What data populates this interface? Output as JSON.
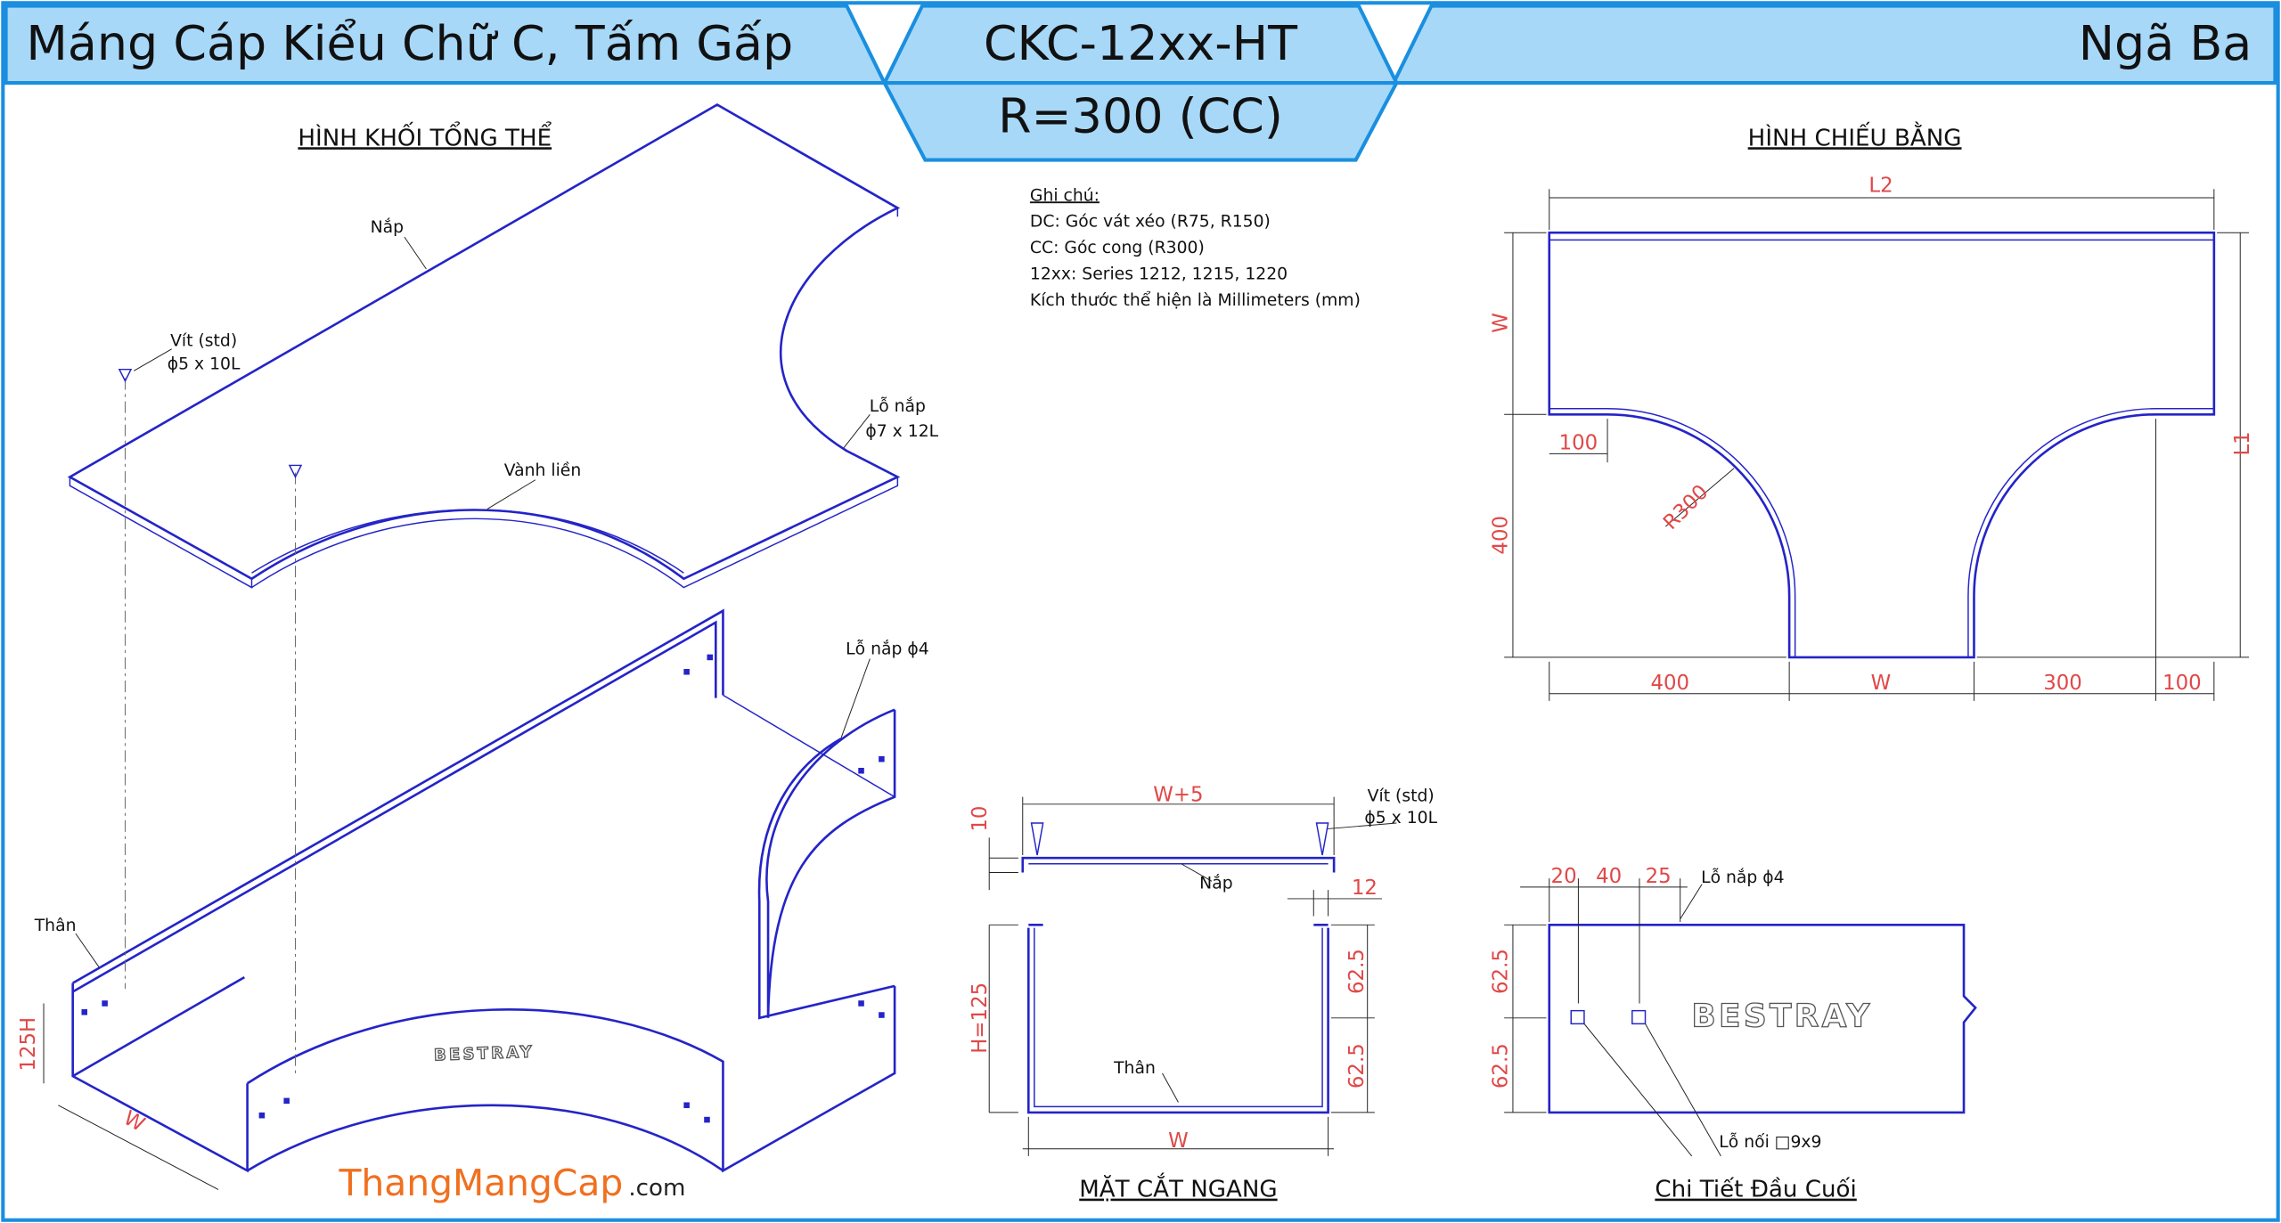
{
  "header": {
    "title": "Máng Cáp Kiểu Chữ C, Tấm Gấp",
    "code": "CKC-12xx-HT",
    "radius": "R=300 (CC)",
    "fitting": "Ngã Ba"
  },
  "notes": {
    "heading": "Ghi chú:",
    "lines": [
      "DC: Góc vát xéo (R75, R150)",
      "CC: Góc cong (R300)",
      "12xx: Series 1212, 1215, 1220",
      "Kích thước thể hiện là Millimeters (mm)"
    ]
  },
  "isometric": {
    "title": "HÌNH KHỐI TỔNG THỂ",
    "cover": "Nắp",
    "screw": "Vít (std)",
    "screw_size": "ϕ5 x 10L",
    "rim": "Vành liền",
    "cover_hole": "Lỗ nắp",
    "cover_hole_size": "ϕ7 x 12L",
    "body_hole": "Lỗ nắp ϕ4",
    "body": "Thân",
    "height": "125H",
    "width": "W",
    "brand": "BESTRAY"
  },
  "plan_view": {
    "title": "HÌNH CHIẾU BẰNG",
    "length_2": "L2",
    "width": "W",
    "length_1": "L1",
    "offset": "100",
    "radius": "R300",
    "branch_length": "400",
    "bottom": [
      "400",
      "W",
      "300",
      "100"
    ]
  },
  "section": {
    "title": "MẶT CẮT NGANG",
    "cover_width": "W+5",
    "screw": "Vít (std)",
    "screw_size": "ϕ5 x 10L",
    "cover_lip": "10",
    "cover": "Nắp",
    "gap": "12",
    "height": "H=125",
    "upper": "62.5",
    "lower": "62.5",
    "body": "Thân",
    "width": "W"
  },
  "end_detail": {
    "title": "Chi Tiết Đầu Cuối",
    "spacing": [
      "20",
      "40",
      "25"
    ],
    "cover_hole": "Lỗ nắp ϕ4",
    "upper": "62.5",
    "lower": "62.5",
    "brand": "BESTRAY",
    "joint_hole": "Lỗ nối □9x9"
  },
  "logo": {
    "name": "ThangMangCap",
    "suffix": ".com"
  }
}
